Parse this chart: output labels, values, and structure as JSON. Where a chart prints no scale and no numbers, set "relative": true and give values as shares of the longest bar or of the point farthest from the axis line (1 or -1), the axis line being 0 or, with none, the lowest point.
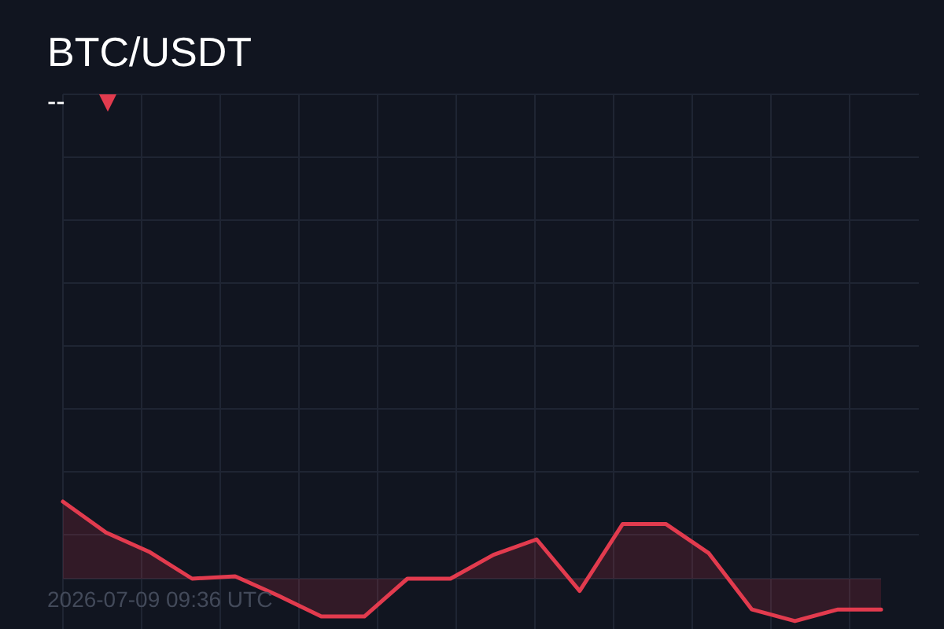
{
  "chart_data": {
    "type": "area",
    "title": "BTC/USDT",
    "subtitle": "--",
    "annotations": [
      "2026-07-09 09:36 UTC"
    ],
    "categories": [
      null,
      null,
      null,
      null,
      null,
      null,
      null,
      null,
      null,
      null,
      null,
      null,
      null,
      null,
      null,
      null,
      null,
      null,
      null,
      null
    ],
    "values": [
      1.0,
      0.6,
      0.35,
      0.0,
      0.03,
      -0.22,
      -0.49,
      -0.49,
      0.0,
      0.0,
      0.31,
      0.51,
      -0.16,
      0.71,
      0.71,
      0.33,
      -0.4,
      -0.55,
      -0.4,
      -0.4
    ],
    "color": "#e23b4e",
    "relative": true,
    "grid": true
  }
}
